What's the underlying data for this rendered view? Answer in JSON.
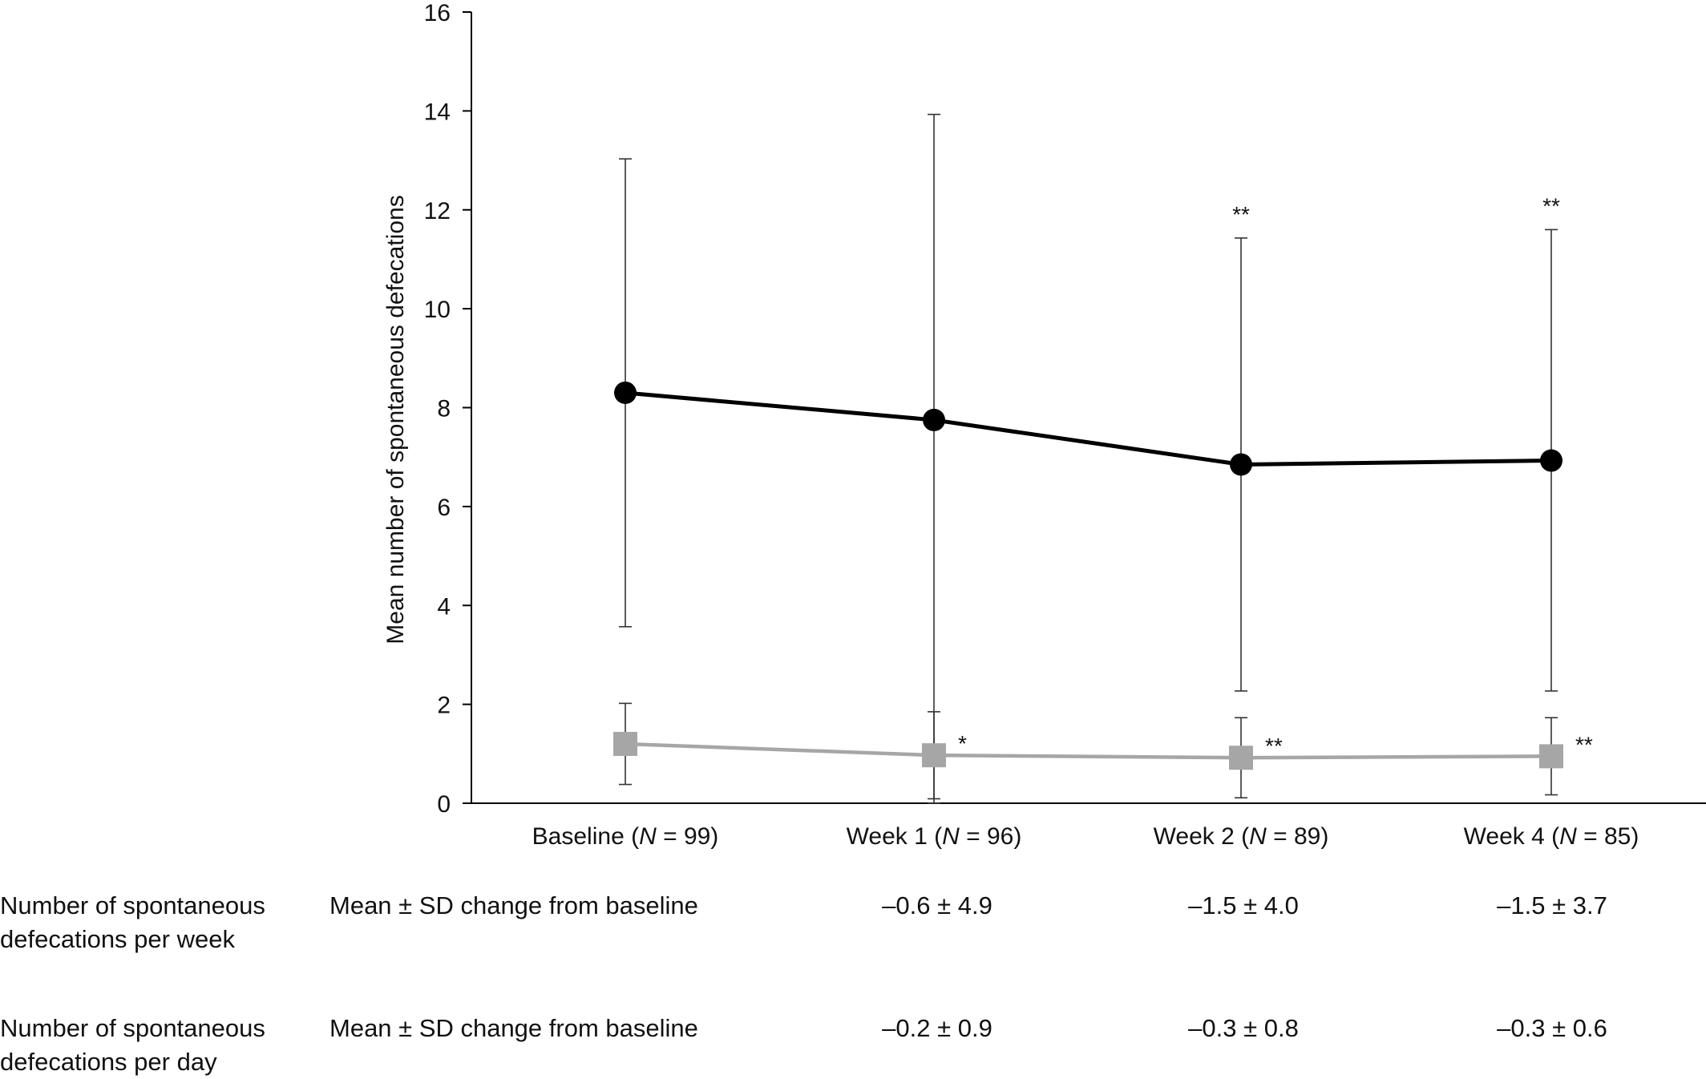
{
  "chart_data": {
    "type": "line",
    "ylabel": "Mean number of spontaneous defecations",
    "xlabel": "",
    "ylim": [
      0,
      16
    ],
    "yticks": [
      0,
      2,
      4,
      6,
      8,
      10,
      12,
      14,
      16
    ],
    "grid": false,
    "categories": [
      {
        "name": "Baseline",
        "n": "99"
      },
      {
        "name": "Week 1",
        "n": "96"
      },
      {
        "name": "Week 2",
        "n": "89"
      },
      {
        "name": "Week 4",
        "n": "85"
      }
    ],
    "series": [
      {
        "marker": "circle",
        "color": "#000000",
        "values": [
          8.3,
          7.75,
          6.85,
          6.93
        ],
        "error_upper": [
          13.03,
          13.93,
          11.43,
          11.6
        ],
        "error_lower": [
          3.57,
          0.0,
          2.27,
          2.27
        ],
        "significance": [
          "",
          "",
          "**",
          "**"
        ]
      },
      {
        "marker": "square",
        "color": "#a6a6a6",
        "values": [
          1.2,
          0.97,
          0.92,
          0.95
        ],
        "error_upper": [
          2.02,
          1.85,
          1.73,
          1.73
        ],
        "error_lower": [
          0.38,
          0.09,
          0.11,
          0.17
        ],
        "significance": [
          "",
          "*",
          "**",
          "**"
        ]
      }
    ]
  },
  "table": {
    "rows": [
      {
        "label_line1": "Number of spontaneous",
        "label_line2": "defecations per week",
        "measure": "Mean ± SD change from baseline",
        "values": [
          "–0.6 ± 4.9",
          "–1.5 ± 4.0",
          "–1.5 ± 3.7"
        ]
      },
      {
        "label_line1": "Number of spontaneous",
        "label_line2": "defecations per day",
        "measure": "Mean ± SD change from baseline",
        "values": [
          "–0.2 ± 0.9",
          "–0.3 ± 0.8",
          "–0.3 ± 0.6"
        ]
      }
    ]
  }
}
